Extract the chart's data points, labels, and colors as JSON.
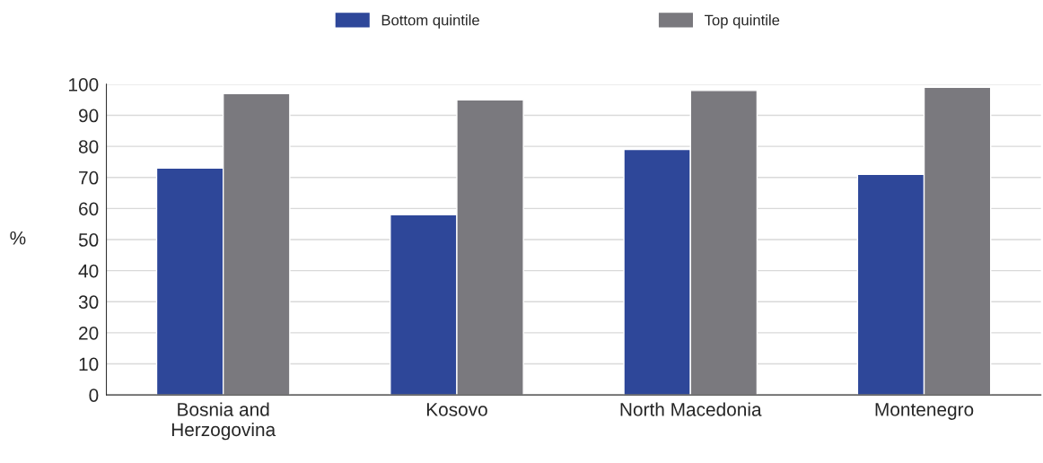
{
  "chart_data": {
    "type": "bar",
    "ylabel": "%",
    "categories": [
      "Bosnia and\nHerzogovina",
      "Kosovo",
      "North Macedonia",
      "Montenegro"
    ],
    "series": [
      {
        "name": "Bottom quintile",
        "color": "#2e4799",
        "values": [
          73,
          58,
          79,
          71
        ]
      },
      {
        "name": "Top quintile",
        "color": "#7a797e",
        "values": [
          97,
          95,
          98,
          99
        ]
      }
    ],
    "ylim": [
      0,
      100
    ],
    "yticks": [
      0,
      10,
      20,
      30,
      40,
      50,
      60,
      70,
      80,
      90,
      100
    ],
    "grid": "y",
    "legend": "top"
  }
}
